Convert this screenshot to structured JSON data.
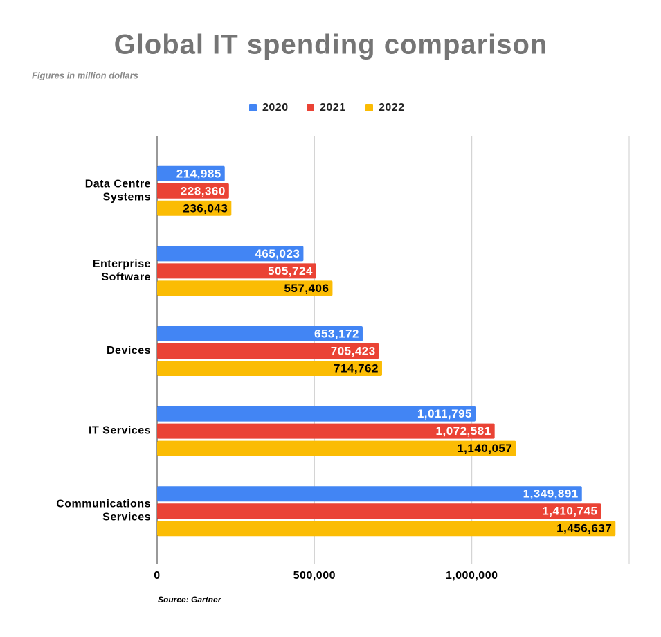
{
  "chart_data": {
    "type": "hbar",
    "title": "Global IT spending comparison",
    "subtitle": "Figures in million dollars",
    "source": "Source: Gartner",
    "categories": [
      [
        "Data Centre",
        "Systems"
      ],
      [
        "Enterprise",
        "Software"
      ],
      [
        "Devices"
      ],
      [
        "IT Services"
      ],
      [
        "Communications",
        "Services"
      ]
    ],
    "series": [
      {
        "name": "2020",
        "color": "#4285f4",
        "label_color": "#ffffff",
        "values": [
          214985,
          465023,
          653172,
          1011795,
          1349891
        ],
        "value_labels": [
          "214,985",
          "465,023",
          "653,172",
          "1,011,795",
          "1,349,891"
        ]
      },
      {
        "name": "2021",
        "color": "#ea4335",
        "label_color": "#ffffff",
        "values": [
          228360,
          505724,
          705423,
          1072581,
          1410745
        ],
        "value_labels": [
          "228,360",
          "505,724",
          "705,423",
          "1,072,581",
          "1,410,745"
        ]
      },
      {
        "name": "2022",
        "color": "#fbbc04",
        "label_color": "#000000",
        "values": [
          236043,
          557406,
          714762,
          1140057,
          1456637
        ],
        "value_labels": [
          "236,043",
          "557,406",
          "714,762",
          "1,140,057",
          "1,456,637"
        ]
      }
    ],
    "xlim": [
      0,
      1500000
    ],
    "xticks": [
      0,
      {
        "value": 500000,
        "label": "500,000"
      },
      {
        "value": 1000000,
        "label": "1,000,000"
      },
      {
        "value": 1500000,
        "label": ""
      }
    ],
    "grid": true,
    "legend": "top"
  }
}
